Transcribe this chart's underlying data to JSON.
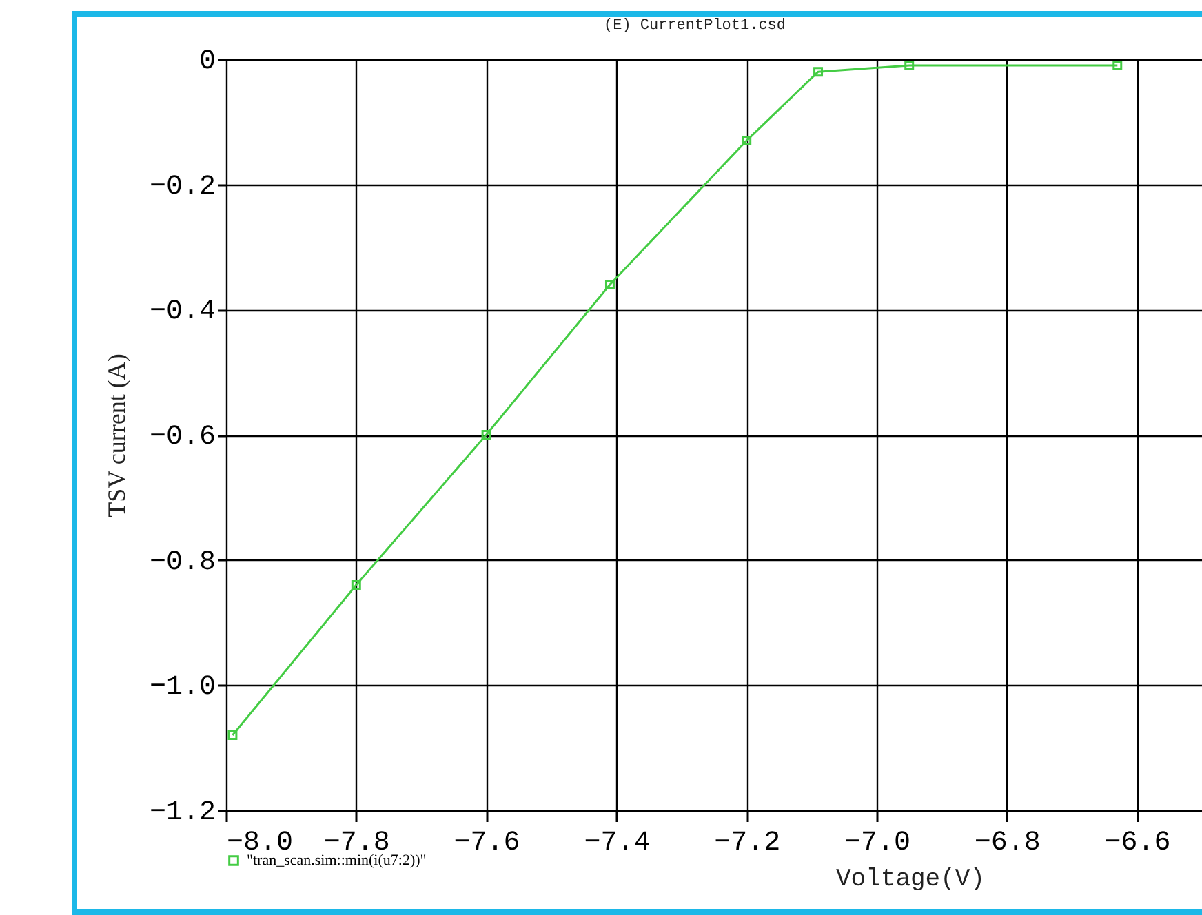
{
  "chart_data": {
    "type": "line",
    "title": "(E) CurrentPlot1.csd",
    "xlabel": "Voltage(V)",
    "ylabel": "TSV current (A)",
    "x": [
      -7.99,
      -7.8,
      -7.6,
      -7.41,
      -7.2,
      -7.09,
      -6.95,
      -6.63
    ],
    "series": [
      {
        "name": "\"tran_scan.sim::min(i(u7:2))\"",
        "color": "#44cc44",
        "values": [
          -1.08,
          -0.84,
          -0.6,
          -0.36,
          -0.13,
          -0.02,
          -0.01,
          -0.01
        ]
      }
    ],
    "xlim": [
      -8.0,
      -6.5
    ],
    "xticks": [
      {
        "value": -8.0,
        "label": "−8.0"
      },
      -7.8,
      -7.6,
      -7.4,
      -7.2,
      {
        "value": -7.0,
        "label": "−7.0"
      },
      -6.8,
      -6.6
    ],
    "ylim": [
      -1.2,
      0
    ],
    "yticks": [
      {
        "value": -1.2,
        "label": "−1.2"
      },
      {
        "value": -1.0,
        "label": "−1.0"
      },
      -0.8,
      -0.6,
      -0.4,
      -0.2,
      0
    ],
    "grid": true,
    "legend": "bottom left",
    "marker": "square",
    "line_style": "solid"
  }
}
